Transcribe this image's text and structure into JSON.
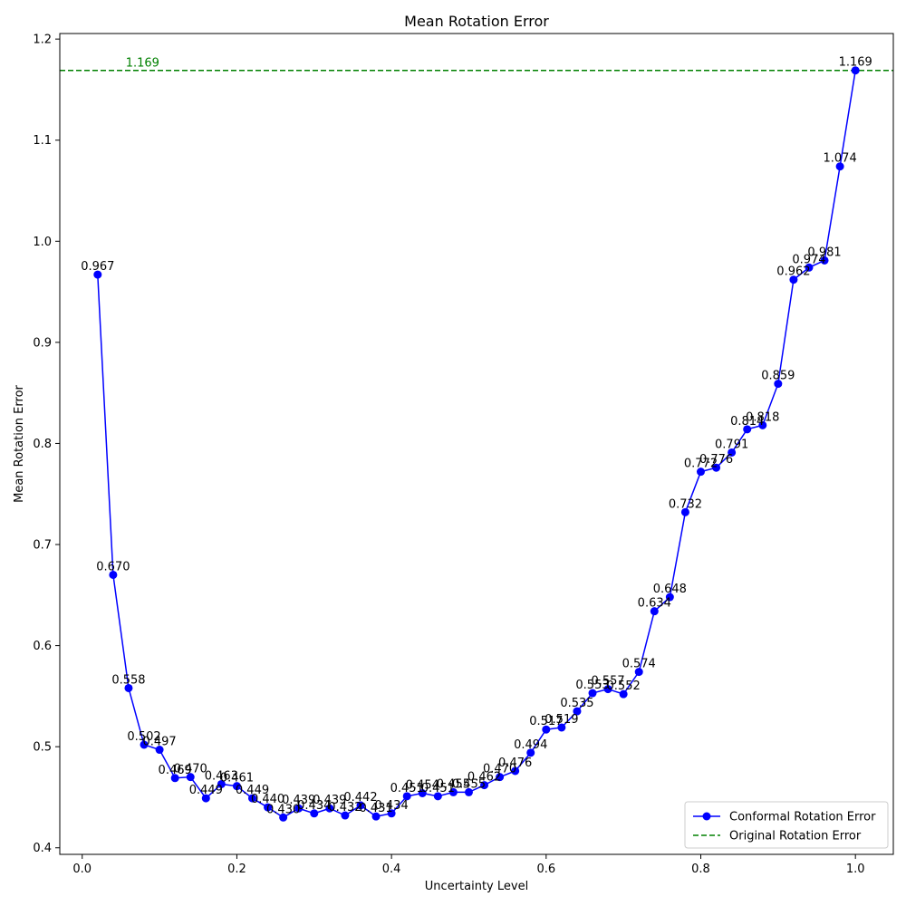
{
  "chart_data": {
    "type": "line",
    "title": "Mean Rotation Error",
    "xlabel": "Uncertainty Level",
    "ylabel": "Mean Rotation Error",
    "xlim": [
      -0.029,
      1.049
    ],
    "ylim": [
      0.3935,
      1.2055
    ],
    "xticks": [
      0.0,
      0.2,
      0.4,
      0.6,
      0.8,
      1.0
    ],
    "xtick_labels": [
      "0.0",
      "0.2",
      "0.4",
      "0.6",
      "0.8",
      "1.0"
    ],
    "yticks": [
      0.4,
      0.5,
      0.6,
      0.7,
      0.8,
      0.9,
      1.0,
      1.1,
      1.2
    ],
    "ytick_labels": [
      "0.4",
      "0.5",
      "0.6",
      "0.7",
      "0.8",
      "0.9",
      "1.0",
      "1.1",
      "1.2"
    ],
    "grid": false,
    "legend_position": "lower-right",
    "series": [
      {
        "name": "Conformal Rotation Error",
        "color": "#0000ff",
        "style": "solid-line-with-circle-markers",
        "x": [
          0.02,
          0.04,
          0.06,
          0.08,
          0.1,
          0.12,
          0.14,
          0.16,
          0.18,
          0.2,
          0.22,
          0.24,
          0.26,
          0.28,
          0.3,
          0.32,
          0.34,
          0.36,
          0.38,
          0.4,
          0.42,
          0.44,
          0.46,
          0.48,
          0.5,
          0.52,
          0.54,
          0.56,
          0.58,
          0.6,
          0.62,
          0.64,
          0.66,
          0.68,
          0.7,
          0.72,
          0.74,
          0.76,
          0.78,
          0.8,
          0.82,
          0.84,
          0.86,
          0.88,
          0.9,
          0.92,
          0.94,
          0.96,
          0.98,
          1.0
        ],
        "y": [
          0.967,
          0.67,
          0.558,
          0.502,
          0.497,
          0.469,
          0.47,
          0.449,
          0.463,
          0.461,
          0.449,
          0.44,
          0.43,
          0.439,
          0.434,
          0.439,
          0.432,
          0.442,
          0.431,
          0.434,
          0.451,
          0.454,
          0.451,
          0.455,
          0.455,
          0.462,
          0.47,
          0.476,
          0.494,
          0.517,
          0.519,
          0.535,
          0.553,
          0.557,
          0.552,
          0.574,
          0.634,
          0.648,
          0.732,
          0.772,
          0.776,
          0.791,
          0.814,
          0.818,
          0.859,
          0.962,
          0.974,
          0.981,
          1.074,
          1.169
        ],
        "labels": [
          "0.967",
          "0.670",
          "0.558",
          "0.502",
          "0.497",
          "0.469",
          "0.470",
          "0.449",
          "0.463",
          "0.461",
          "0.449",
          "0.440",
          "0.430",
          "0.439",
          "0.434",
          "0.439",
          "0.432",
          "0.442",
          "0.431",
          "0.434",
          "0.451",
          "0.454",
          "0.451",
          "0.455",
          "0.455",
          "0.462",
          "0.470",
          "0.476",
          "0.494",
          "0.517",
          "0.519",
          "0.535",
          "0.553",
          "0.557",
          "0.552",
          "0.574",
          "0.634",
          "0.648",
          "0.732",
          "0.772",
          "0.776",
          "0.791",
          "0.814",
          "0.818",
          "0.859",
          "0.962",
          "0.974",
          "0.981",
          "1.074",
          "1.169"
        ]
      },
      {
        "name": "Original Rotation Error",
        "color": "#008000",
        "style": "dashed-horizontal-line",
        "y": 1.169,
        "label": "1.169"
      }
    ]
  }
}
